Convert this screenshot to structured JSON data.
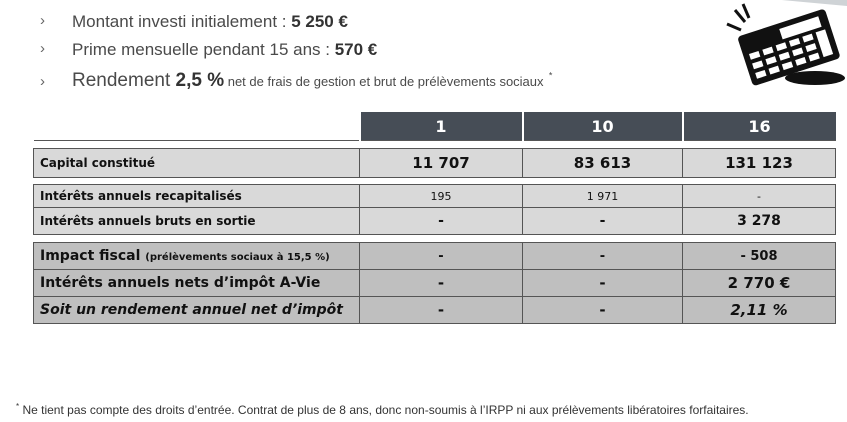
{
  "bullets": [
    {
      "label": "Montant investi initialement : ",
      "value": "5 250 €"
    },
    {
      "label": "Prime mensuelle pendant 15 ans : ",
      "value": "570 €"
    },
    {
      "label": "Rendement ",
      "value": "2,5 %",
      "note": " net de frais de gestion et brut de prélèvements sociaux",
      "marker": "*"
    }
  ],
  "table": {
    "years": [
      "1",
      "10",
      "16"
    ],
    "rows": {
      "capital": {
        "label": "Capital constitué",
        "values": [
          "11 707",
          "83 613",
          "131 123"
        ]
      },
      "interets_recap": {
        "label": "Intérêts annuels recapitalisés",
        "values": [
          "195",
          "1 971",
          "-"
        ]
      },
      "interets_bruts": {
        "label": "Intérêts annuels bruts en sortie",
        "values": [
          "-",
          "-",
          "3 278"
        ]
      },
      "impact": {
        "label": "Impact fiscal ",
        "sublabel": "(prélèvements sociaux à 15,5 %)",
        "values": [
          "-",
          "-",
          "- 508"
        ]
      },
      "interets_nets": {
        "label": "Intérêts annuels nets d’impôt A-Vie",
        "values": [
          "-",
          "-",
          "2 770 €"
        ]
      },
      "rendement": {
        "label": "Soit un rendement annuel net d’impôt",
        "values": [
          "-",
          "-",
          "2,11 %"
        ]
      }
    }
  },
  "footnote": {
    "marker": "*",
    "text": " Ne tient pas compte des droits d’entrée. Contrat de plus de 8 ans, donc non-soumis à l’IRPP ni aux prélèvements libératoires forfaitaires."
  },
  "icons": {
    "bullet": "chevron-right-icon",
    "illustration": "calculator-icon"
  },
  "colors": {
    "header_bg": "#464d56",
    "light_row": "#d9d9d9",
    "dark_row": "#bfbfbf"
  }
}
